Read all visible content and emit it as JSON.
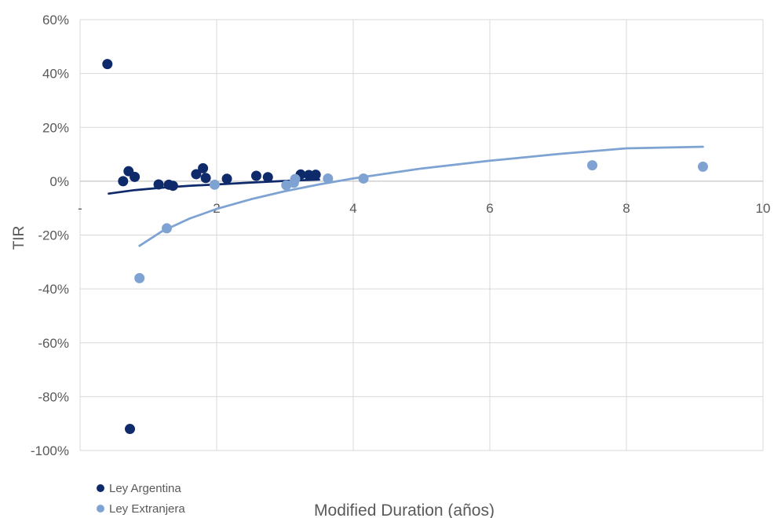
{
  "chart_data": {
    "type": "scatter",
    "title": "",
    "xlabel": "Modified Duration (años)",
    "ylabel": "TIR",
    "xlim": [
      0,
      10
    ],
    "ylim": [
      -100,
      60
    ],
    "x_ticks": [
      0,
      2,
      4,
      6,
      8,
      10
    ],
    "x_tick_labels": [
      "-",
      "2",
      "4",
      "6",
      "8",
      "10"
    ],
    "y_ticks": [
      60,
      40,
      20,
      0,
      -20,
      -40,
      -60,
      -80,
      -100
    ],
    "y_tick_labels": [
      "60%",
      "40%",
      "20%",
      "0%",
      "-20%",
      "-40%",
      "-60%",
      "-80%",
      "-100%"
    ],
    "grid": true,
    "legend_position": "bottom-left",
    "series": [
      {
        "name": "Ley Argentina",
        "color": "#0e2a6b",
        "points": [
          {
            "x": 0.4,
            "y": 43.5
          },
          {
            "x": 0.63,
            "y": 0
          },
          {
            "x": 0.71,
            "y": 3.7
          },
          {
            "x": 0.8,
            "y": 1.6
          },
          {
            "x": 0.73,
            "y": -92
          },
          {
            "x": 1.15,
            "y": -1.2
          },
          {
            "x": 1.3,
            "y": -1.3
          },
          {
            "x": 1.36,
            "y": -1.7
          },
          {
            "x": 1.7,
            "y": 2.6
          },
          {
            "x": 1.8,
            "y": 4.8
          },
          {
            "x": 1.84,
            "y": 1.2
          },
          {
            "x": 2.15,
            "y": 0.9
          },
          {
            "x": 2.58,
            "y": 2.0
          },
          {
            "x": 2.75,
            "y": 1.5
          },
          {
            "x": 3.23,
            "y": 2.5
          },
          {
            "x": 3.35,
            "y": 2.3
          },
          {
            "x": 3.45,
            "y": 2.4
          }
        ],
        "trend": [
          {
            "x": 0.42,
            "y": -4.6
          },
          {
            "x": 0.8,
            "y": -3.3
          },
          {
            "x": 1.2,
            "y": -2.4
          },
          {
            "x": 1.6,
            "y": -1.7
          },
          {
            "x": 2.0,
            "y": -1.2
          },
          {
            "x": 2.5,
            "y": -0.5
          },
          {
            "x": 3.0,
            "y": 0.1
          },
          {
            "x": 3.5,
            "y": 0.6
          }
        ]
      },
      {
        "name": "Ley Extranjera",
        "color": "#7ea3d3",
        "points": [
          {
            "x": 0.87,
            "y": -36
          },
          {
            "x": 1.27,
            "y": -17.5
          },
          {
            "x": 1.97,
            "y": -1.3
          },
          {
            "x": 3.02,
            "y": -1.5
          },
          {
            "x": 3.13,
            "y": -0.6
          },
          {
            "x": 3.15,
            "y": 0.8
          },
          {
            "x": 3.63,
            "y": 1.0
          },
          {
            "x": 4.15,
            "y": 1.0
          },
          {
            "x": 7.5,
            "y": 5.9
          },
          {
            "x": 9.12,
            "y": 5.4
          }
        ],
        "trend": [
          {
            "x": 0.87,
            "y": -24.0
          },
          {
            "x": 1.2,
            "y": -18.6
          },
          {
            "x": 1.6,
            "y": -13.9
          },
          {
            "x": 2.0,
            "y": -10.3
          },
          {
            "x": 2.5,
            "y": -6.7
          },
          {
            "x": 3.0,
            "y": -3.7
          },
          {
            "x": 3.5,
            "y": -1.2
          },
          {
            "x": 4.0,
            "y": 1.0
          },
          {
            "x": 5.0,
            "y": 4.7
          },
          {
            "x": 6.0,
            "y": 7.6
          },
          {
            "x": 7.0,
            "y": 10.1
          },
          {
            "x": 8.0,
            "y": 12.2
          },
          {
            "x": 9.12,
            "y": 12.8
          }
        ]
      }
    ]
  }
}
